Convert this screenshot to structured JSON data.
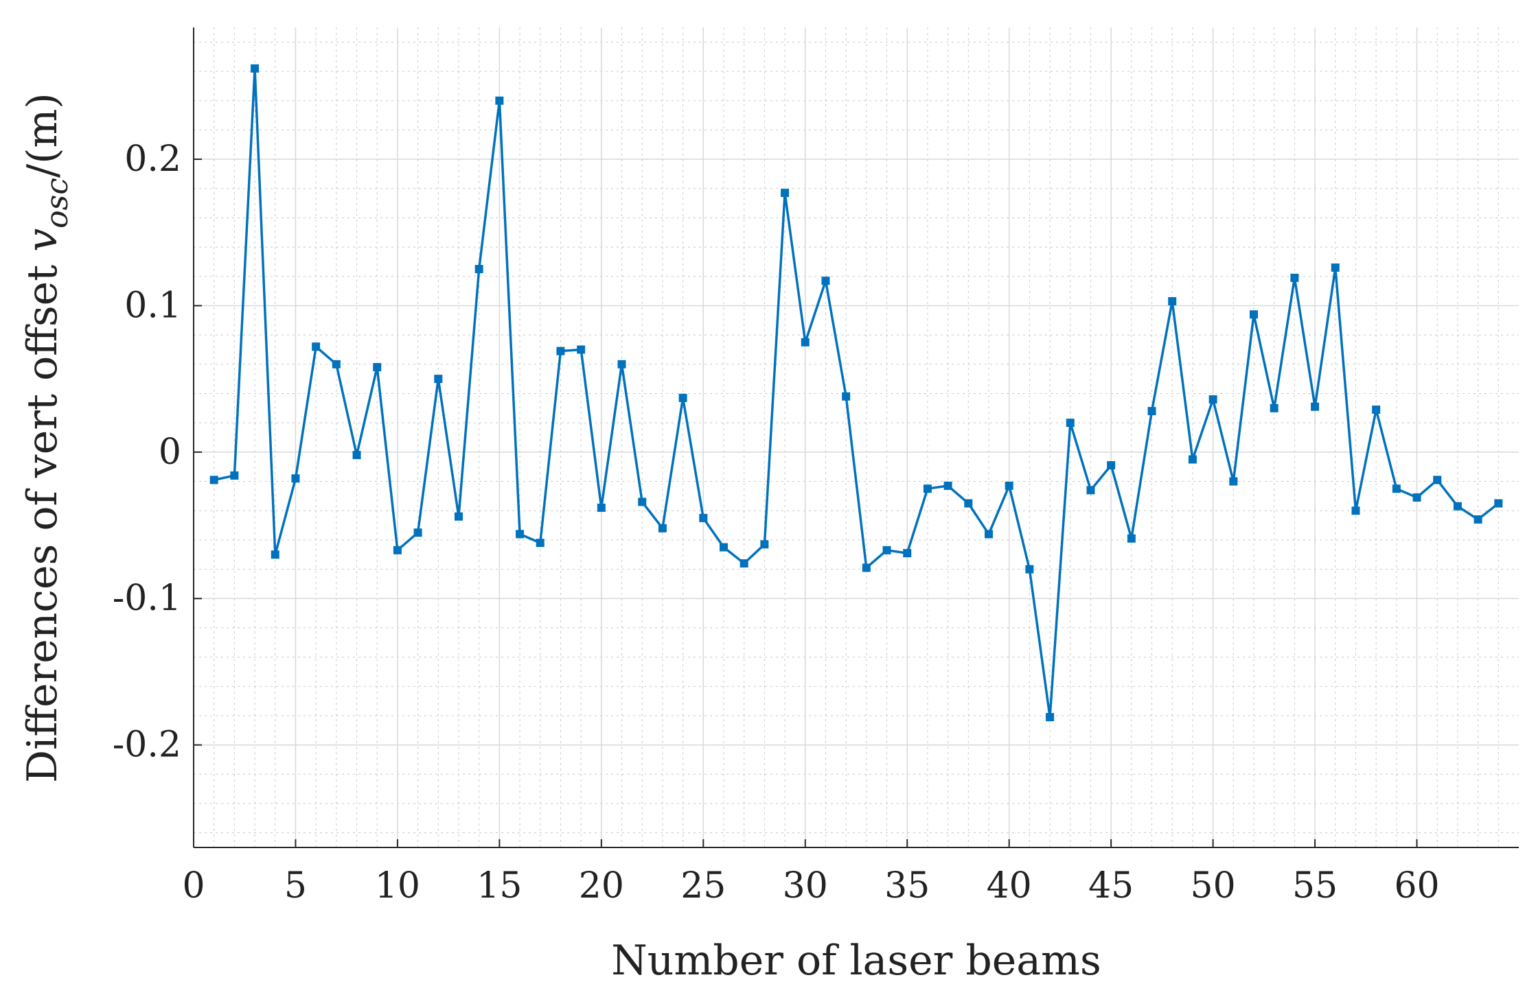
{
  "chart_data": {
    "type": "line",
    "title": "",
    "xlabel": "Number of laser beams",
    "ylabel": {
      "prefix": "Differences of vert offset ",
      "variable": "v",
      "subscript": "osc",
      "suffix": "/(m)"
    },
    "xlim": [
      0,
      65
    ],
    "ylim": [
      -0.27,
      0.29
    ],
    "x_ticks": [
      0,
      5,
      10,
      15,
      20,
      25,
      30,
      35,
      40,
      45,
      50,
      55,
      60
    ],
    "y_ticks": [
      -0.2,
      -0.1,
      0,
      0.1,
      0.2
    ],
    "y_tick_labels": [
      "-0.2",
      "-0.1",
      "0",
      "0.1",
      "0.2"
    ],
    "grid": true,
    "minor_grid": true,
    "line_color": "#0072BD",
    "marker": "square",
    "series": [
      {
        "x": [
          1,
          2,
          3,
          4,
          5,
          6,
          7,
          8,
          9,
          10,
          11,
          12,
          13,
          14,
          15,
          16,
          17,
          18,
          19,
          20,
          21,
          22,
          23,
          24,
          25,
          26,
          27,
          28,
          29,
          30,
          31,
          32,
          33,
          34,
          35,
          36,
          37,
          38,
          39,
          40,
          41,
          42,
          43,
          44,
          45,
          46,
          47,
          48,
          49,
          50,
          51,
          52,
          53,
          54,
          55,
          56,
          57,
          58,
          59,
          60,
          61,
          62,
          63,
          64
        ],
        "values": [
          -0.019,
          -0.016,
          0.262,
          -0.07,
          -0.018,
          0.072,
          0.06,
          -0.002,
          0.058,
          -0.067,
          -0.055,
          0.05,
          -0.044,
          0.125,
          0.24,
          -0.056,
          -0.062,
          0.069,
          0.07,
          -0.038,
          0.06,
          -0.034,
          -0.052,
          0.037,
          -0.045,
          -0.065,
          -0.076,
          -0.063,
          0.177,
          0.075,
          0.117,
          0.038,
          -0.079,
          -0.067,
          -0.069,
          -0.025,
          -0.023,
          -0.035,
          -0.056,
          -0.023,
          -0.08,
          -0.181,
          0.02,
          -0.026,
          -0.009,
          -0.059,
          0.028,
          0.103,
          -0.005,
          0.036,
          -0.02,
          0.094,
          0.03,
          0.119,
          0.031,
          0.126,
          -0.04,
          0.029,
          -0.025,
          -0.031,
          -0.019,
          -0.037,
          -0.046,
          -0.035
        ]
      }
    ]
  }
}
